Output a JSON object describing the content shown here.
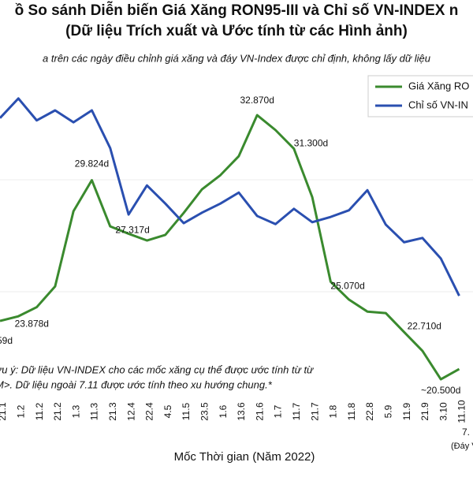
{
  "chart_data": {
    "type": "line",
    "title": "ồ So sánh Diễn biến Giá Xăng RON95-III và Chỉ số VN-INDEX n",
    "title_line2": "(Dữ liệu Trích xuất và Ước tính từ các Hình ảnh)",
    "subtitle": "a trên các ngày điều chỉnh giá xăng và đáy VN-Index được chỉ định, không lấy dữ liệu",
    "x_label": "Mốc Thời gian (Năm 2022)",
    "categories": [
      "21.1",
      "1.2",
      "11.2",
      "21.2",
      "1.3",
      "11.3",
      "21.3",
      "12.4",
      "22.4",
      "4.5",
      "11.5",
      "23.5",
      "1.6",
      "13.6",
      "21.6",
      "1.7",
      "11.7",
      "21.7",
      "1.8",
      "11.8",
      "22.8",
      "5.9",
      "11.9",
      "21.9",
      "3.10",
      "11.10"
    ],
    "ylim": [
      19.8,
      34.57
    ],
    "y2lim": [
      900,
      1560
    ],
    "series": [
      {
        "name": "Giá Xăng RO",
        "color": "#3a8a2e",
        "axis": "y",
        "values": [
          23.23,
          23.45,
          23.878,
          24.85,
          28.37,
          29.824,
          27.66,
          27.317,
          27.0,
          27.26,
          28.29,
          29.4,
          30.06,
          30.95,
          32.87,
          32.17,
          31.3,
          29.03,
          25.07,
          24.23,
          23.67,
          23.6,
          22.71,
          21.83,
          20.5,
          20.98
        ],
        "value_labels": [
          null,
          null,
          "23.878d",
          null,
          null,
          "29.824d",
          null,
          "27.317d",
          null,
          null,
          null,
          null,
          null,
          null,
          "32.870d",
          null,
          "31.300d",
          null,
          "25.070d",
          null,
          null,
          null,
          "22.710d",
          null,
          "~20.500d",
          null
        ]
      },
      {
        "name": "Chỉ số VN-IN",
        "color": "#2a4fb0",
        "axis": "y2",
        "values": [
          1478,
          1519,
          1473,
          1494,
          1469,
          1494,
          1415,
          1276,
          1337,
          1299,
          1258,
          1280,
          1299,
          1322,
          1273,
          1256,
          1288,
          1260,
          1271,
          1285,
          1327,
          1255,
          1218,
          1227,
          1184,
          1106
        ]
      }
    ],
    "annotations": [
      "59d",
      "7.",
      "(Đáy VN"
    ],
    "note_lines": [
      "ưu ý: Dữ liệu VN-INDEX cho các mốc xăng cụ thể được ước tính từ từ",
      "M>. Dữ liệu ngoài 7.11 được ước tính theo xu hướng chung.*"
    ]
  }
}
